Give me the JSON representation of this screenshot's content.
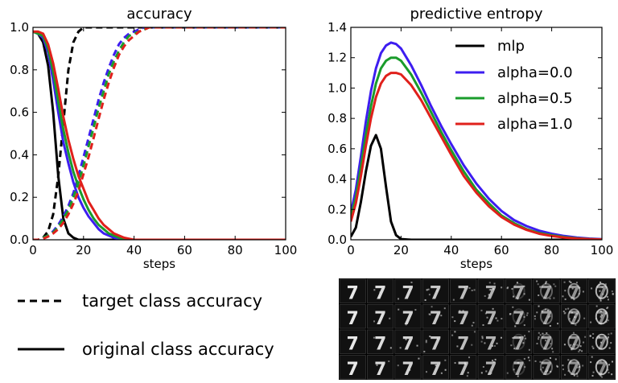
{
  "chart_data": [
    {
      "type": "line",
      "title": "accuracy",
      "xlabel": "steps",
      "ylabel": "",
      "xlim": [
        0,
        100
      ],
      "ylim": [
        0,
        1.0
      ],
      "xticks": [
        0,
        20,
        40,
        60,
        80,
        100
      ],
      "yticks": [
        0.0,
        0.2,
        0.4,
        0.6,
        0.8,
        1.0
      ],
      "x": [
        0,
        2,
        4,
        6,
        8,
        10,
        12,
        14,
        16,
        18,
        20,
        22,
        24,
        26,
        28,
        30,
        32,
        34,
        36,
        38,
        40,
        42,
        44,
        46,
        50,
        60,
        70,
        80,
        90,
        100
      ],
      "series": [
        {
          "model": "mlp",
          "metric": "original class accuracy",
          "style": "solid",
          "color": "#000000",
          "values": [
            0.98,
            0.97,
            0.93,
            0.82,
            0.6,
            0.3,
            0.1,
            0.03,
            0.01,
            0,
            0,
            0,
            0,
            0,
            0,
            0,
            0,
            0,
            0,
            0,
            0,
            0,
            0,
            0,
            0,
            0,
            0,
            0,
            0,
            0
          ]
        },
        {
          "model": "mlp",
          "metric": "target class accuracy",
          "style": "dashed",
          "color": "#000000",
          "values": [
            0.0,
            0.0,
            0.01,
            0.04,
            0.12,
            0.3,
            0.55,
            0.8,
            0.93,
            0.98,
            1.0,
            1.0,
            1.0,
            1.0,
            1.0,
            1.0,
            1.0,
            1.0,
            1.0,
            1.0,
            1.0,
            1.0,
            1.0,
            1.0,
            1.0,
            1.0,
            1.0,
            1.0,
            1.0,
            1.0
          ]
        },
        {
          "model": "alpha=0.0",
          "metric": "original class accuracy",
          "style": "solid",
          "color": "#3d1df0",
          "values": [
            0.98,
            0.97,
            0.95,
            0.88,
            0.75,
            0.6,
            0.46,
            0.36,
            0.27,
            0.2,
            0.15,
            0.11,
            0.08,
            0.05,
            0.03,
            0.02,
            0.01,
            0.005,
            0,
            0,
            0,
            0,
            0,
            0,
            0,
            0,
            0,
            0,
            0,
            0
          ]
        },
        {
          "model": "alpha=0.0",
          "metric": "target class accuracy",
          "style": "dashed",
          "color": "#3d1df0",
          "values": [
            0.0,
            0.0,
            0.01,
            0.02,
            0.04,
            0.07,
            0.11,
            0.16,
            0.22,
            0.3,
            0.39,
            0.48,
            0.57,
            0.66,
            0.74,
            0.81,
            0.87,
            0.92,
            0.95,
            0.97,
            0.98,
            0.99,
            1.0,
            1.0,
            1.0,
            1.0,
            1.0,
            1.0,
            1.0,
            1.0
          ]
        },
        {
          "model": "alpha=0.5",
          "metric": "original class accuracy",
          "style": "solid",
          "color": "#1a9c2b",
          "values": [
            0.98,
            0.97,
            0.96,
            0.9,
            0.79,
            0.65,
            0.52,
            0.41,
            0.32,
            0.25,
            0.19,
            0.14,
            0.1,
            0.07,
            0.05,
            0.03,
            0.02,
            0.01,
            0.005,
            0,
            0,
            0,
            0,
            0,
            0,
            0,
            0,
            0,
            0,
            0
          ]
        },
        {
          "model": "alpha=0.5",
          "metric": "target class accuracy",
          "style": "dashed",
          "color": "#1a9c2b",
          "values": [
            0.0,
            0.0,
            0.01,
            0.02,
            0.035,
            0.06,
            0.1,
            0.14,
            0.2,
            0.27,
            0.35,
            0.44,
            0.53,
            0.62,
            0.7,
            0.78,
            0.84,
            0.89,
            0.93,
            0.96,
            0.97,
            0.98,
            0.99,
            1.0,
            1.0,
            1.0,
            1.0,
            1.0,
            1.0,
            1.0
          ]
        },
        {
          "model": "alpha=1.0",
          "metric": "original class accuracy",
          "style": "solid",
          "color": "#e0201b",
          "values": [
            0.98,
            0.98,
            0.97,
            0.92,
            0.83,
            0.71,
            0.58,
            0.47,
            0.38,
            0.3,
            0.24,
            0.18,
            0.14,
            0.1,
            0.07,
            0.05,
            0.03,
            0.02,
            0.01,
            0.005,
            0,
            0,
            0,
            0,
            0,
            0,
            0,
            0,
            0,
            0
          ]
        },
        {
          "model": "alpha=1.0",
          "metric": "target class accuracy",
          "style": "dashed",
          "color": "#e0201b",
          "values": [
            0.0,
            0.0,
            0.005,
            0.015,
            0.03,
            0.05,
            0.08,
            0.12,
            0.17,
            0.23,
            0.31,
            0.39,
            0.48,
            0.57,
            0.66,
            0.74,
            0.81,
            0.87,
            0.91,
            0.94,
            0.96,
            0.98,
            0.99,
            1.0,
            1.0,
            1.0,
            1.0,
            1.0,
            1.0,
            1.0
          ]
        }
      ]
    },
    {
      "type": "line",
      "title": "predictive entropy",
      "xlabel": "steps",
      "ylabel": "",
      "xlim": [
        0,
        100
      ],
      "ylim": [
        0,
        1.4
      ],
      "xticks": [
        0,
        20,
        40,
        60,
        80,
        100
      ],
      "yticks": [
        0.0,
        0.2,
        0.4,
        0.6,
        0.8,
        1.0,
        1.2,
        1.4
      ],
      "legend_position": "top-right",
      "x": [
        0,
        2,
        4,
        6,
        8,
        10,
        12,
        14,
        16,
        18,
        20,
        24,
        28,
        32,
        36,
        40,
        45,
        50,
        55,
        60,
        65,
        70,
        75,
        80,
        85,
        90,
        95,
        100
      ],
      "series": [
        {
          "name": "mlp",
          "color": "#000000",
          "values": [
            0.02,
            0.08,
            0.25,
            0.45,
            0.62,
            0.69,
            0.6,
            0.35,
            0.12,
            0.03,
            0.005,
            0,
            0,
            0,
            0,
            0,
            0,
            0,
            0,
            0,
            0,
            0,
            0,
            0,
            0,
            0,
            0,
            0
          ]
        },
        {
          "name": "alpha=0.0",
          "color": "#3d1df0",
          "values": [
            0.18,
            0.33,
            0.55,
            0.78,
            0.98,
            1.13,
            1.23,
            1.28,
            1.3,
            1.29,
            1.26,
            1.15,
            1.02,
            0.88,
            0.75,
            0.63,
            0.49,
            0.37,
            0.27,
            0.19,
            0.13,
            0.09,
            0.06,
            0.04,
            0.025,
            0.015,
            0.008,
            0.004
          ]
        },
        {
          "name": "alpha=0.5",
          "color": "#1a9c2b",
          "values": [
            0.15,
            0.28,
            0.48,
            0.69,
            0.88,
            1.03,
            1.13,
            1.18,
            1.2,
            1.2,
            1.18,
            1.09,
            0.97,
            0.84,
            0.71,
            0.59,
            0.45,
            0.33,
            0.24,
            0.16,
            0.11,
            0.07,
            0.045,
            0.03,
            0.018,
            0.01,
            0.005,
            0.002
          ]
        },
        {
          "name": "alpha=1.0",
          "color": "#e0201b",
          "values": [
            0.12,
            0.24,
            0.42,
            0.62,
            0.8,
            0.94,
            1.03,
            1.08,
            1.1,
            1.1,
            1.09,
            1.02,
            0.92,
            0.8,
            0.68,
            0.56,
            0.42,
            0.31,
            0.22,
            0.15,
            0.1,
            0.065,
            0.04,
            0.025,
            0.015,
            0.008,
            0.004,
            0.002
          ]
        }
      ]
    }
  ],
  "bottom_legend": {
    "dashed_label": "target class accuracy",
    "solid_label": "original class accuracy"
  },
  "digit_grid": {
    "rows": 4,
    "cols": 10,
    "glyph": "7"
  }
}
